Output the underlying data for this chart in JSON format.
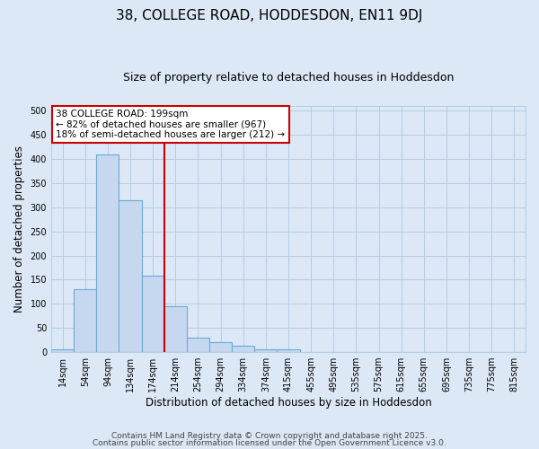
{
  "title": "38, COLLEGE ROAD, HODDESDON, EN11 9DJ",
  "subtitle": "Size of property relative to detached houses in Hoddesdon",
  "xlabel": "Distribution of detached houses by size in Hoddesdon",
  "ylabel": "Number of detached properties",
  "categories": [
    "14sqm",
    "54sqm",
    "94sqm",
    "134sqm",
    "174sqm",
    "214sqm",
    "254sqm",
    "294sqm",
    "334sqm",
    "374sqm",
    "415sqm",
    "455sqm",
    "495sqm",
    "535sqm",
    "575sqm",
    "615sqm",
    "655sqm",
    "695sqm",
    "735sqm",
    "775sqm",
    "815sqm"
  ],
  "values": [
    5,
    130,
    410,
    315,
    158,
    95,
    30,
    20,
    14,
    5,
    5,
    0,
    0,
    0,
    0,
    0,
    0,
    0,
    0,
    0,
    0
  ],
  "bar_color": "#c5d8f0",
  "bar_edge_color": "#6aabd6",
  "red_line_x": 4.5,
  "annotation_line1": "38 COLLEGE ROAD: 199sqm",
  "annotation_line2": "← 82% of detached houses are smaller (967)",
  "annotation_line3": "18% of semi-detached houses are larger (212) →",
  "annotation_box_facecolor": "#ffffff",
  "annotation_box_edgecolor": "#cc0000",
  "footer1": "Contains HM Land Registry data © Crown copyright and database right 2025.",
  "footer2": "Contains public sector information licensed under the Open Government Licence v3.0.",
  "ylim": [
    0,
    510
  ],
  "yticks": [
    0,
    50,
    100,
    150,
    200,
    250,
    300,
    350,
    400,
    450,
    500
  ],
  "fig_bg_color": "#dce8f5",
  "plot_bg_color": "#dce8f5",
  "grid_color": "#b0c8e0",
  "title_fontsize": 11,
  "subtitle_fontsize": 9,
  "tick_fontsize": 7,
  "label_fontsize": 8.5,
  "annotation_fontsize": 7.5,
  "footer_fontsize": 6.5
}
